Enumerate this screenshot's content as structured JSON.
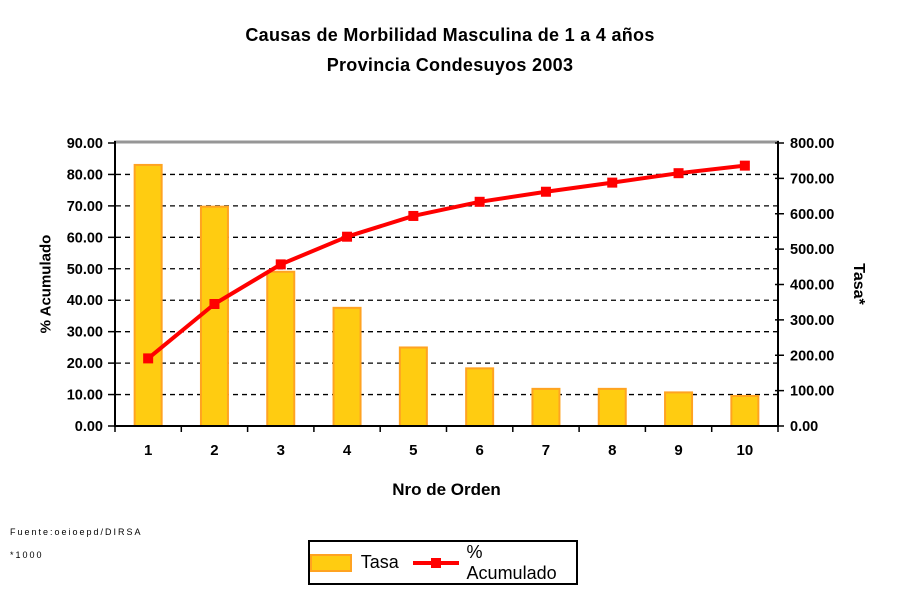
{
  "title": {
    "line1": "Causas de Morbilidad Masculina de 1 a 4 años",
    "line2": "Provincia Condesuyos 2003"
  },
  "footer": {
    "source": "Fuente:oeioepd/DIRSA",
    "note": "*1000"
  },
  "colors": {
    "bar_fill": "#FFCC11",
    "bar_border": "#FFA321",
    "line": "#FF0000",
    "grid": "#000000",
    "frame": "#000000",
    "frame_top": "#969696",
    "background": "#FFFFFF"
  },
  "chart_data": {
    "type": "bar+line pareto combo",
    "title": "Causas de Morbilidad Masculina de 1 a 4 años — Provincia Condesuyos 2003",
    "xlabel": "Nro de Orden",
    "categories": [
      "1",
      "2",
      "3",
      "4",
      "5",
      "6",
      "7",
      "8",
      "9",
      "10"
    ],
    "series": [
      {
        "name": "Tasa",
        "type": "bar",
        "axis": "right",
        "values": [
          738,
          620,
          436,
          334,
          222,
          163,
          105,
          105,
          95,
          85
        ]
      },
      {
        "name": "% Acumulado",
        "type": "line",
        "axis": "left",
        "values": [
          21.5,
          38.8,
          51.4,
          60.2,
          66.8,
          71.3,
          74.5,
          77.4,
          80.4,
          82.8
        ]
      }
    ],
    "left_axis": {
      "title": "% Acumulado",
      "min": 0,
      "max": 90,
      "step": 10,
      "tick_labels": [
        "0.00",
        "10.00",
        "20.00",
        "30.00",
        "40.00",
        "50.00",
        "60.00",
        "70.00",
        "80.00",
        "90.00"
      ]
    },
    "right_axis": {
      "title": "Tasa*",
      "min": 0,
      "max": 800,
      "step": 100,
      "tick_labels": [
        "0.00",
        "100.00",
        "200.00",
        "300.00",
        "400.00",
        "500.00",
        "600.00",
        "700.00",
        "800.00"
      ]
    },
    "grid": "horizontal dashed black",
    "legend_position": "bottom center"
  }
}
